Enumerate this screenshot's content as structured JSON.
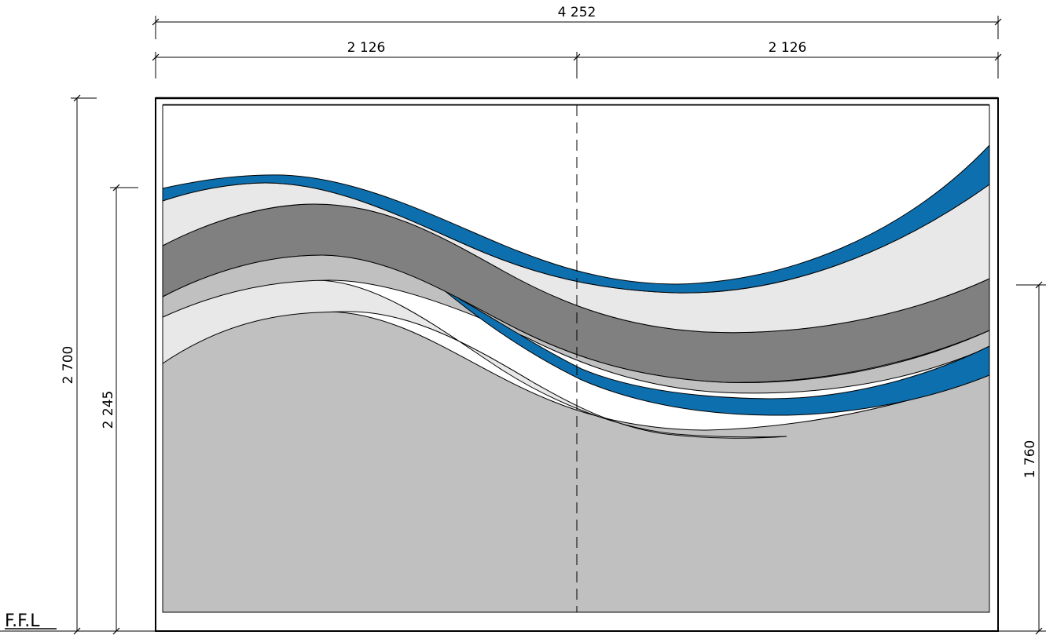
{
  "dimensions": {
    "overall_width": "4 252",
    "left_panel_width": "2 126",
    "right_panel_width": "2 126",
    "overall_height": "2 700",
    "left_wave_height": "2 245",
    "right_wave_height": "1 760"
  },
  "floor_label": "F.F.L",
  "colors": {
    "blue": "#0e6fae",
    "light_grey": "#e8e8e8",
    "mid_grey": "#c0c0c0",
    "dark_grey": "#808080",
    "frame": "#000000",
    "background": "#ffffff"
  }
}
